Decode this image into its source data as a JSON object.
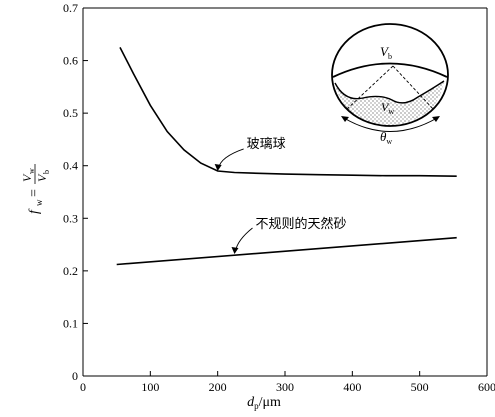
{
  "chart_data": {
    "type": "line",
    "title": "",
    "xlabel": {
      "main": "d",
      "sub": "p",
      "unit": "/μm"
    },
    "ylabel": {
      "main": "f",
      "sub": "w",
      "eq": "=",
      "num": "V",
      "num_sub": "w",
      "den": "V",
      "den_sub": "b"
    },
    "xlim": [
      0,
      600
    ],
    "ylim": [
      0,
      0.7
    ],
    "xticks": [
      0,
      100,
      200,
      300,
      400,
      500,
      600
    ],
    "yticks": [
      0,
      0.1,
      0.2,
      0.3,
      0.4,
      0.5,
      0.6,
      0.7
    ],
    "xtick_labels": [
      "0",
      "100",
      "200",
      "300",
      "400",
      "500",
      "600"
    ],
    "ytick_labels": [
      "0",
      "0.1",
      "0.2",
      "0.3",
      "0.4",
      "0.5",
      "0.6",
      "0.7"
    ],
    "grid": false,
    "series": [
      {
        "label": "玻璃球",
        "x": [
          55,
          75,
          100,
          125,
          150,
          175,
          200,
          225,
          250,
          300,
          350,
          400,
          450,
          500,
          555
        ],
        "y": [
          0.625,
          0.575,
          0.515,
          0.465,
          0.43,
          0.405,
          0.39,
          0.387,
          0.386,
          0.384,
          0.383,
          0.382,
          0.381,
          0.381,
          0.38
        ]
      },
      {
        "label": "不规则的天然砂",
        "x": [
          50,
          555
        ],
        "y": [
          0.212,
          0.263
        ]
      }
    ],
    "annotations": [
      {
        "text": "玻璃球",
        "target": [
          200,
          0.39
        ]
      },
      {
        "text": "不规则的天然砂",
        "target": [
          225,
          0.232
        ]
      }
    ],
    "inset": {
      "labels": {
        "vb": {
          "main": "V",
          "sub": "b"
        },
        "vw": {
          "main": "V",
          "sub": "w"
        },
        "theta": {
          "main": "θ",
          "sub": "w"
        }
      }
    }
  }
}
